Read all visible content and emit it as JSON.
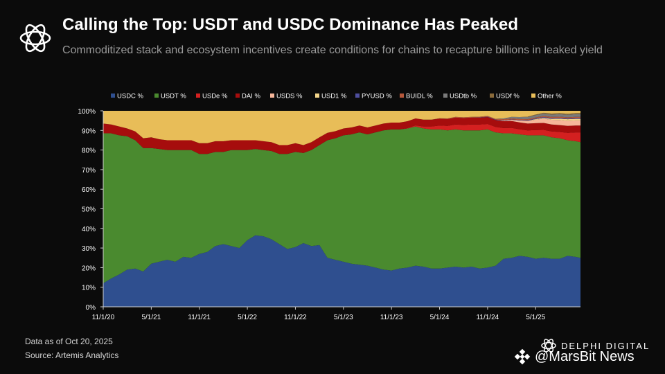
{
  "header": {
    "title": "Calling the Top: USDT and USDC Dominance Has Peaked",
    "subtitle": "Commoditized stack and ecosystem incentives create conditions for chains to recapture billions in leaked yield"
  },
  "footer": {
    "data_as_of": "Data as of Oct 20, 2025",
    "source": "Source: Artemis Analytics"
  },
  "brand": {
    "delphi": "DELPHI DIGITAL",
    "marsbit": "@MarsBit News"
  },
  "chart_data": {
    "type": "area",
    "stacked": true,
    "title": "Calling the Top: USDT and USDC Dominance Has Peaked",
    "xlabel": "",
    "ylabel": "",
    "ylim": [
      0,
      100
    ],
    "y_ticks": [
      "0%",
      "10%",
      "20%",
      "30%",
      "40%",
      "50%",
      "60%",
      "70%",
      "80%",
      "90%",
      "100%"
    ],
    "x_tick_labels": [
      "11/1/20",
      "5/1/21",
      "11/1/21",
      "5/1/22",
      "11/1/22",
      "5/1/23",
      "11/1/23",
      "5/1/24",
      "11/1/24",
      "5/1/25"
    ],
    "x_start": "2020-11-01",
    "x_end": "2025-10-20",
    "legend_position": "top",
    "series": [
      {
        "name": "USDC %",
        "color": "#2f4f8f",
        "x": [
          0,
          1,
          2,
          3,
          4,
          5,
          6,
          7,
          8,
          9,
          10,
          11,
          12,
          13,
          14,
          15,
          16,
          17,
          18,
          19,
          20,
          21,
          22,
          23,
          24,
          25,
          26,
          27,
          28,
          29,
          30,
          31,
          32,
          33,
          34,
          35,
          36,
          37,
          38,
          39,
          40,
          41,
          42,
          43,
          44,
          45,
          46,
          47,
          48,
          49,
          50,
          51,
          52,
          53,
          54,
          55,
          56,
          57,
          58,
          59,
          59.6
        ],
        "values": [
          12,
          14.5,
          16.5,
          19,
          19.5,
          18,
          22,
          23,
          24,
          23,
          25.5,
          25,
          27,
          28,
          31,
          32,
          31,
          30,
          34,
          36.5,
          36,
          34.5,
          32,
          29.5,
          30.5,
          32.5,
          31,
          31.5,
          25,
          24,
          23,
          22,
          21.5,
          21,
          20,
          19,
          18.5,
          19.5,
          20,
          21,
          20.5,
          19.5,
          19.5,
          20,
          20.5,
          20,
          20.5,
          19.5,
          20,
          21,
          24.5,
          25,
          26,
          25.5,
          24.5,
          25,
          24.5,
          24.5,
          26,
          25.5,
          25
        ]
      },
      {
        "name": "USDT %",
        "color": "#4a8a2f",
        "x": [
          0,
          1,
          2,
          3,
          4,
          5,
          6,
          7,
          8,
          9,
          10,
          11,
          12,
          13,
          14,
          15,
          16,
          17,
          18,
          19,
          20,
          21,
          22,
          23,
          24,
          25,
          26,
          27,
          28,
          29,
          30,
          31,
          32,
          33,
          34,
          35,
          36,
          37,
          38,
          39,
          40,
          41,
          42,
          43,
          44,
          45,
          46,
          47,
          48,
          49,
          50,
          51,
          52,
          53,
          54,
          55,
          56,
          57,
          58,
          59,
          59.6
        ],
        "values": [
          76.5,
          74,
          71,
          68,
          65.5,
          63,
          59,
          57.5,
          56,
          57,
          54.5,
          55,
          51,
          50,
          48,
          47,
          49,
          50,
          46,
          44,
          44,
          45,
          46,
          48.5,
          48.5,
          46,
          49,
          51,
          60,
          62,
          64.5,
          66,
          67.5,
          67,
          69,
          71,
          72,
          71,
          71,
          71,
          70.5,
          71,
          71,
          70,
          70,
          70,
          69.5,
          70.5,
          70.5,
          68,
          64,
          63.5,
          62,
          62,
          63,
          62.5,
          62,
          61.5,
          59,
          59,
          59
        ]
      },
      {
        "name": "USDe %",
        "color": "#d42020",
        "x": [
          38,
          39,
          40,
          41,
          42,
          43,
          44,
          45,
          46,
          47,
          48,
          49,
          50,
          51,
          52,
          53,
          54,
          55,
          56,
          57,
          58,
          59,
          59.6
        ],
        "values": [
          0.2,
          0.6,
          1,
          1.5,
          2,
          2.3,
          2.5,
          2.8,
          3,
          3,
          2.8,
          2.8,
          2.7,
          2.8,
          2.6,
          2.5,
          2.7,
          2.8,
          3.0,
          3.2,
          3.8,
          4.5,
          5.0
        ]
      },
      {
        "name": "DAI %",
        "color": "#a60d0d",
        "x": [
          0,
          1,
          2,
          3,
          4,
          5,
          6,
          7,
          8,
          9,
          10,
          11,
          12,
          13,
          14,
          15,
          16,
          17,
          18,
          19,
          20,
          21,
          22,
          23,
          24,
          25,
          26,
          27,
          28,
          29,
          30,
          31,
          32,
          33,
          34,
          35,
          36,
          37,
          38,
          39,
          40,
          41,
          42,
          43,
          44,
          45,
          46,
          47,
          48,
          49,
          50,
          51,
          52,
          53,
          54,
          55,
          56,
          57,
          58,
          59,
          59.6
        ],
        "values": [
          5,
          4.5,
          4.5,
          4,
          4.5,
          5,
          5.5,
          5,
          5,
          5,
          5,
          5,
          5.5,
          5.5,
          5.5,
          5.5,
          5,
          5,
          5,
          4.5,
          4.5,
          4.5,
          4.5,
          4.5,
          4.5,
          4,
          4,
          4,
          3.8,
          3.6,
          3.5,
          3.5,
          3.5,
          3.5,
          3.5,
          3.5,
          3.5,
          3.5,
          3.5,
          3.5,
          3.5,
          3.5,
          3.5,
          3.5,
          3.5,
          3.5,
          3.5,
          3.5,
          3.5,
          3.5,
          3.5,
          3.5,
          3.5,
          3.5,
          3.5,
          3.5,
          3.5,
          3.5,
          3.5,
          3.5,
          3.5
        ]
      },
      {
        "name": "USDS %",
        "color": "#f6b69a",
        "x": [
          50,
          51,
          52,
          53,
          54,
          55,
          56,
          57,
          58,
          59,
          59.6
        ],
        "values": [
          0.3,
          0.6,
          1,
          1.4,
          1.8,
          2.2,
          2.4,
          2.6,
          2.6,
          2.6,
          2.6
        ]
      },
      {
        "name": "USD1 %",
        "color": "#f3d58a",
        "x": [
          53,
          54,
          55,
          56,
          57,
          58,
          59,
          59.6
        ],
        "values": [
          0,
          0.3,
          0.4,
          0.5,
          0.7,
          0.8,
          0.8,
          0.8
        ]
      },
      {
        "name": "PYUSD %",
        "color": "#4e4e9e",
        "x": [
          46,
          47,
          48,
          49,
          50,
          51,
          52,
          53,
          54,
          55,
          56,
          57,
          58,
          59,
          59.6
        ],
        "values": [
          0,
          0.1,
          0.2,
          0.2,
          0.2,
          0.2,
          0.2,
          0.3,
          0.3,
          0.4,
          0.4,
          0.4,
          0.4,
          0.4,
          0.4
        ]
      },
      {
        "name": "BUIDL %",
        "color": "#b5573a",
        "x": [
          41,
          42,
          43,
          44,
          45,
          46,
          47,
          48,
          49,
          50,
          51,
          52,
          53,
          54,
          55,
          56,
          57,
          58,
          59,
          59.6
        ],
        "values": [
          0,
          0.2,
          0.3,
          0.4,
          0.4,
          0.4,
          0.4,
          0.4,
          0.4,
          0.5,
          0.5,
          0.5,
          0.5,
          0.5,
          0.6,
          0.6,
          0.6,
          0.6,
          0.6,
          0.6
        ]
      },
      {
        "name": "USDtb %",
        "color": "#7a7a7a",
        "x": [
          49,
          50,
          51,
          52,
          53,
          54,
          55,
          56,
          57,
          58,
          59,
          59.6
        ],
        "values": [
          0,
          0.4,
          0.8,
          1,
          1.1,
          1.2,
          1.2,
          1.2,
          1.3,
          1.3,
          1.4,
          1.4
        ]
      },
      {
        "name": "USDf %",
        "color": "#8a6a3a",
        "x": [
          52,
          53,
          54,
          55,
          56,
          57,
          58,
          59,
          59.6
        ],
        "values": [
          0,
          0.2,
          0.3,
          0.4,
          0.5,
          0.5,
          0.5,
          0.5,
          0.5
        ]
      },
      {
        "name": "Other  %",
        "color": "#e8bd58",
        "remainder": true
      }
    ]
  }
}
